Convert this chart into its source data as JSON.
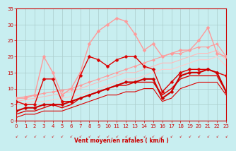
{
  "background_color": "#c8eef0",
  "grid_color": "#aacccc",
  "xlabel": "Vent moyen/en rafales ( km/h )",
  "xlabel_color": "#cc0000",
  "tick_color": "#cc0000",
  "xmin": 0,
  "xmax": 23,
  "ymin": 0,
  "ymax": 35,
  "yticks": [
    0,
    5,
    10,
    15,
    20,
    25,
    30,
    35
  ],
  "xticks": [
    0,
    1,
    2,
    3,
    4,
    5,
    6,
    7,
    8,
    9,
    10,
    11,
    12,
    13,
    14,
    15,
    16,
    17,
    18,
    19,
    20,
    21,
    22,
    23
  ],
  "series": [
    {
      "comment": "light pink - jagged line with markers (max ~32 at x=11)",
      "x": [
        0,
        1,
        2,
        3,
        4,
        5,
        6,
        7,
        8,
        9,
        10,
        11,
        12,
        13,
        14,
        15,
        16,
        17,
        18,
        19,
        20,
        21,
        22,
        23
      ],
      "y": [
        7,
        7,
        8,
        20,
        15,
        8,
        10,
        15,
        24,
        28,
        30,
        32,
        31,
        27,
        22,
        24,
        20,
        21,
        22,
        22,
        25,
        29,
        21,
        20
      ],
      "color": "#ff9999",
      "lw": 1.0,
      "marker": "D",
      "ms": 2.5,
      "zorder": 3
    },
    {
      "comment": "light pink straight line - top diagonal (from ~7 to ~24)",
      "x": [
        0,
        1,
        2,
        3,
        4,
        5,
        6,
        7,
        8,
        9,
        10,
        11,
        12,
        13,
        14,
        15,
        16,
        17,
        18,
        19,
        20,
        21,
        22,
        23
      ],
      "y": [
        7,
        7.5,
        8,
        8.5,
        9,
        9.5,
        10,
        11,
        12,
        13,
        14,
        15,
        16,
        17,
        18,
        19,
        20,
        21,
        21,
        22,
        23,
        23,
        24,
        20
      ],
      "color": "#ff9999",
      "lw": 0.8,
      "marker": "D",
      "ms": 2,
      "zorder": 2
    },
    {
      "comment": "light pink line - second diagonal",
      "x": [
        0,
        1,
        2,
        3,
        4,
        5,
        6,
        7,
        8,
        9,
        10,
        11,
        12,
        13,
        14,
        15,
        16,
        17,
        18,
        19,
        20,
        21,
        22,
        23
      ],
      "y": [
        6,
        6.5,
        7,
        7.5,
        8,
        8.5,
        9,
        10,
        11,
        12,
        13,
        14,
        15,
        15,
        16,
        17,
        18,
        18,
        19,
        20,
        21,
        21,
        22,
        19
      ],
      "color": "#ffbbbb",
      "lw": 0.8,
      "marker": null,
      "ms": 0,
      "zorder": 2
    },
    {
      "comment": "light pink line - third diagonal (lowest pink)",
      "x": [
        0,
        1,
        2,
        3,
        4,
        5,
        6,
        7,
        8,
        9,
        10,
        11,
        12,
        13,
        14,
        15,
        16,
        17,
        18,
        19,
        20,
        21,
        22,
        23
      ],
      "y": [
        5,
        5.5,
        6,
        6,
        6.5,
        7,
        7.5,
        8,
        9,
        10,
        11,
        12,
        13,
        13,
        14,
        15,
        16,
        16,
        17,
        18,
        19,
        19,
        20,
        17
      ],
      "color": "#ffcccc",
      "lw": 0.8,
      "marker": null,
      "ms": 0,
      "zorder": 2
    },
    {
      "comment": "dark red jagged with markers - upper volatile",
      "x": [
        0,
        1,
        2,
        3,
        4,
        5,
        6,
        7,
        8,
        9,
        10,
        11,
        12,
        13,
        14,
        15,
        16,
        17,
        18,
        19,
        20,
        21,
        22,
        23
      ],
      "y": [
        6,
        5,
        5,
        13,
        13,
        6,
        6,
        14,
        20,
        19,
        17,
        19,
        20,
        20,
        17,
        16,
        9,
        12,
        15,
        16,
        16,
        16,
        15,
        14
      ],
      "color": "#dd0000",
      "lw": 1.0,
      "marker": "D",
      "ms": 2.5,
      "zorder": 4
    },
    {
      "comment": "dark red line with markers - main mid line",
      "x": [
        0,
        1,
        2,
        3,
        4,
        5,
        6,
        7,
        8,
        9,
        10,
        11,
        12,
        13,
        14,
        15,
        16,
        17,
        18,
        19,
        20,
        21,
        22,
        23
      ],
      "y": [
        3,
        4,
        4,
        5,
        5,
        5,
        6,
        7,
        8,
        9,
        10,
        11,
        12,
        12,
        13,
        13,
        7,
        9,
        14,
        15,
        15,
        16,
        15,
        9
      ],
      "color": "#cc0000",
      "lw": 1.5,
      "marker": "D",
      "ms": 2.5,
      "zorder": 5
    },
    {
      "comment": "dark red line - parallel to mid",
      "x": [
        0,
        1,
        2,
        3,
        4,
        5,
        6,
        7,
        8,
        9,
        10,
        11,
        12,
        13,
        14,
        15,
        16,
        17,
        18,
        19,
        20,
        21,
        22,
        23
      ],
      "y": [
        2,
        3,
        3,
        4,
        5,
        4,
        5,
        7,
        8,
        9,
        10,
        11,
        11,
        12,
        12,
        12,
        8,
        10,
        13,
        14,
        14,
        14,
        14,
        9
      ],
      "color": "#dd0000",
      "lw": 1.0,
      "marker": null,
      "ms": 0,
      "zorder": 3
    },
    {
      "comment": "dark red bottom line - nearly straight",
      "x": [
        0,
        1,
        2,
        3,
        4,
        5,
        6,
        7,
        8,
        9,
        10,
        11,
        12,
        13,
        14,
        15,
        16,
        17,
        18,
        19,
        20,
        21,
        22,
        23
      ],
      "y": [
        1,
        2,
        2,
        3,
        3,
        3,
        4,
        5,
        6,
        7,
        8,
        8,
        9,
        9,
        10,
        10,
        6,
        7,
        10,
        11,
        12,
        12,
        12,
        8
      ],
      "color": "#dd0000",
      "lw": 0.8,
      "marker": null,
      "ms": 0,
      "zorder": 3
    }
  ]
}
